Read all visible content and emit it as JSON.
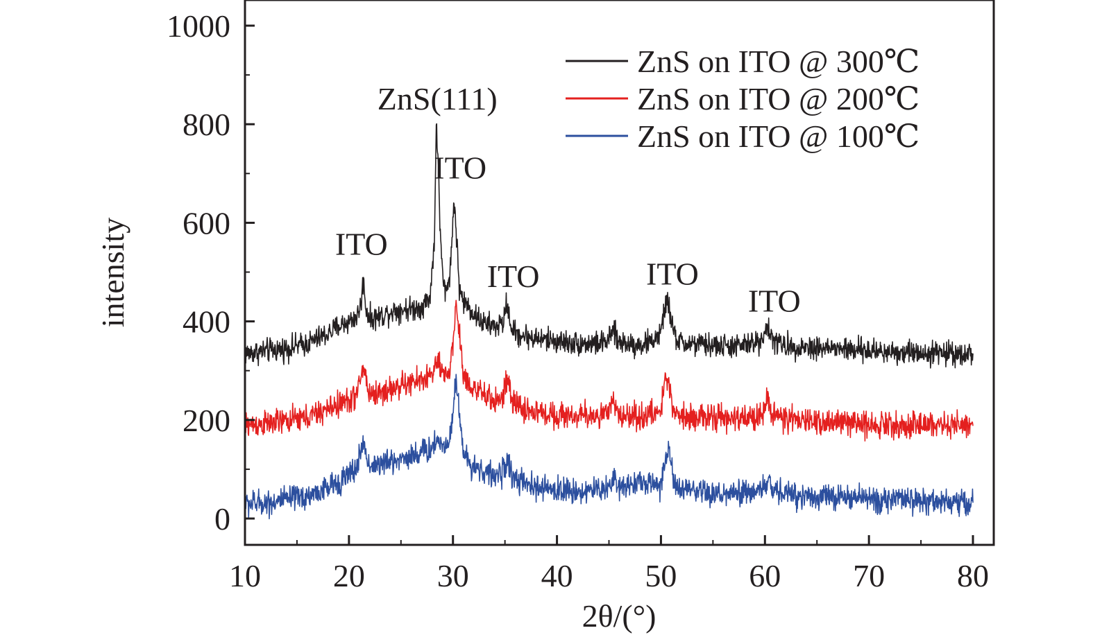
{
  "chart_data": {
    "type": "line",
    "xlabel": "2θ/(°)",
    "ylabel": "intensity",
    "xlim": [
      10,
      80
    ],
    "ylim": [
      -50,
      1050
    ],
    "xticks": [
      10,
      20,
      30,
      40,
      50,
      60,
      70,
      80
    ],
    "yticks": [
      0,
      200,
      400,
      600,
      800,
      1000
    ],
    "grid": false,
    "legend_position": "top-right",
    "series": [
      {
        "name": "ZnS on ITO @ 300℃",
        "color": "#231f20",
        "x": [
          10,
          12,
          14,
          16,
          18,
          19,
          20,
          20.8,
          21.2,
          21.4,
          21.6,
          22,
          23,
          24,
          25,
          26,
          27,
          27.8,
          28.2,
          28.4,
          28.6,
          28.8,
          29.1,
          29.4,
          29.8,
          30.1,
          30.3,
          30.6,
          31,
          31.5,
          32,
          33,
          34,
          34.8,
          35.2,
          35.5,
          36,
          37,
          38,
          40,
          42,
          44,
          45,
          45.4,
          45.8,
          47,
          48,
          49,
          50,
          50.4,
          50.6,
          50.9,
          51.3,
          52,
          54,
          56,
          58,
          59.5,
          60.2,
          60.8,
          62,
          65,
          70,
          75,
          80
        ],
        "y": [
          335,
          340,
          345,
          355,
          375,
          390,
          400,
          410,
          440,
          490,
          430,
          405,
          410,
          420,
          425,
          425,
          430,
          450,
          560,
          790,
          720,
          560,
          470,
          460,
          520,
          650,
          590,
          470,
          440,
          430,
          415,
          395,
          390,
          395,
          440,
          395,
          375,
          370,
          365,
          360,
          355,
          355,
          360,
          385,
          360,
          355,
          352,
          358,
          375,
          430,
          450,
          410,
          370,
          355,
          352,
          350,
          350,
          360,
          390,
          360,
          350,
          347,
          340,
          337,
          335
        ],
        "noise": 12
      },
      {
        "name": "ZnS on ITO @ 200℃",
        "color": "#e4201f",
        "x": [
          10,
          12,
          14,
          16,
          18,
          19,
          20,
          20.8,
          21.2,
          21.5,
          21.8,
          22,
          23,
          24,
          25,
          26,
          27,
          28,
          28.5,
          28.8,
          29.2,
          29.6,
          30,
          30.3,
          30.6,
          31,
          31.5,
          32,
          33,
          34,
          34.8,
          35.2,
          35.6,
          36,
          37,
          38,
          40,
          42,
          44,
          45,
          45.4,
          45.8,
          47,
          48,
          49,
          50,
          50.5,
          50.8,
          51.2,
          52,
          54,
          56,
          58,
          59.5,
          60.3,
          60.9,
          62,
          65,
          70,
          75,
          80
        ],
        "y": [
          190,
          192,
          198,
          205,
          222,
          232,
          240,
          252,
          295,
          305,
          265,
          252,
          255,
          262,
          270,
          275,
          282,
          292,
          320,
          300,
          285,
          298,
          350,
          440,
          380,
          290,
          275,
          265,
          248,
          240,
          245,
          285,
          240,
          232,
          220,
          215,
          210,
          208,
          210,
          212,
          240,
          212,
          208,
          207,
          210,
          220,
          290,
          270,
          220,
          210,
          205,
          203,
          202,
          210,
          240,
          210,
          200,
          197,
          192,
          190,
          188
        ],
        "noise": 13
      },
      {
        "name": "ZnS on ITO @ 100℃",
        "color": "#2c4f9e",
        "x": [
          10,
          12,
          14,
          16,
          18,
          19,
          20,
          20.8,
          21.2,
          21.5,
          21.8,
          22,
          23,
          24,
          25,
          26,
          27,
          28,
          28.5,
          28.8,
          29.2,
          29.6,
          30,
          30.3,
          30.6,
          31,
          31.5,
          32,
          33,
          34,
          34.8,
          35.2,
          35.6,
          36,
          37,
          38,
          40,
          42,
          44,
          45,
          45.4,
          45.8,
          47,
          48,
          49,
          50,
          50.5,
          50.8,
          51.2,
          52,
          54,
          56,
          58,
          59.5,
          60.3,
          60.9,
          62,
          65,
          70,
          75,
          80
        ],
        "y": [
          30,
          32,
          38,
          45,
          62,
          75,
          88,
          105,
          145,
          150,
          115,
          108,
          110,
          115,
          122,
          128,
          135,
          142,
          165,
          150,
          148,
          160,
          210,
          285,
          225,
          130,
          115,
          108,
          95,
          85,
          95,
          120,
          90,
          80,
          68,
          62,
          58,
          55,
          58,
          65,
          85,
          62,
          72,
          75,
          68,
          70,
          130,
          140,
          70,
          58,
          50,
          48,
          50,
          58,
          72,
          58,
          50,
          45,
          40,
          36,
          32
        ],
        "noise": 13
      }
    ],
    "annotations": [
      {
        "text": "ZnS(111)",
        "x": 28.5,
        "y": 830
      },
      {
        "text": "ITO",
        "x": 30.7,
        "y": 690
      },
      {
        "text": "ITO",
        "x": 21.2,
        "y": 535
      },
      {
        "text": "ITO",
        "x": 35.8,
        "y": 470
      },
      {
        "text": "ITO",
        "x": 51.1,
        "y": 475
      },
      {
        "text": "ITO",
        "x": 60.9,
        "y": 420
      }
    ]
  }
}
